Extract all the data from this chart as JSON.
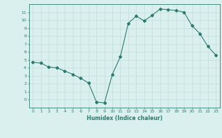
{
  "xlabel": "Humidex (Indice chaleur)",
  "x": [
    0,
    1,
    2,
    3,
    4,
    5,
    6,
    7,
    8,
    9,
    10,
    11,
    12,
    13,
    14,
    15,
    16,
    17,
    18,
    19,
    20,
    21,
    22,
    23
  ],
  "y": [
    4.7,
    4.6,
    4.1,
    4.0,
    3.6,
    3.2,
    2.7,
    2.1,
    -0.3,
    -0.4,
    3.2,
    5.4,
    9.6,
    10.5,
    9.9,
    10.6,
    11.4,
    11.3,
    11.2,
    11.0,
    9.3,
    8.3,
    6.7,
    5.6
  ],
  "line_color": "#2d7a6e",
  "marker": "D",
  "marker_size": 2,
  "bg_color": "#d9f0ef",
  "grid_color": "#c8e0dd",
  "axis_color": "#2d7a6e",
  "xlim": [
    -0.5,
    23.5
  ],
  "ylim": [
    -1,
    12
  ],
  "yticks": [
    0,
    1,
    2,
    3,
    4,
    5,
    6,
    7,
    8,
    9,
    10,
    11
  ],
  "xticks": [
    0,
    1,
    2,
    3,
    4,
    5,
    6,
    7,
    8,
    9,
    10,
    11,
    12,
    13,
    14,
    15,
    16,
    17,
    18,
    19,
    20,
    21,
    22,
    23
  ]
}
